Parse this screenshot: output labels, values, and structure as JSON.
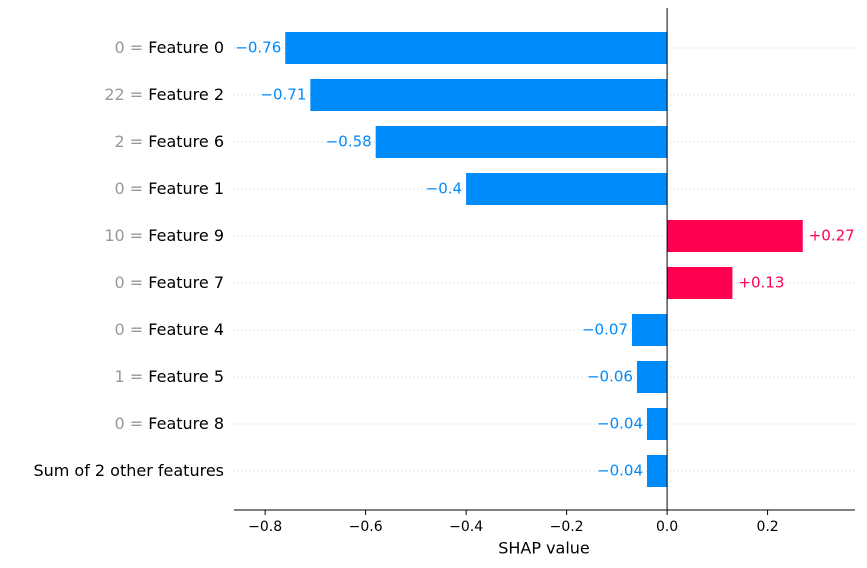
{
  "chart_data": {
    "type": "bar",
    "orientation": "horizontal",
    "feature_values": [
      "0 =",
      "22 =",
      "2 =",
      "0 =",
      "10 =",
      "0 =",
      "0 =",
      "1 =",
      "0 =",
      null
    ],
    "categories": [
      "Feature 0",
      "Feature 2",
      "Feature 6",
      "Feature 1",
      "Feature 9",
      "Feature 7",
      "Feature 4",
      "Feature 5",
      "Feature 8",
      "Sum of 2 other features"
    ],
    "values": [
      -0.76,
      -0.71,
      -0.58,
      -0.4,
      0.27,
      0.13,
      -0.07,
      -0.06,
      -0.04,
      -0.04
    ],
    "value_labels": [
      "−0.76",
      "−0.71",
      "−0.58",
      "−0.4",
      "+0.27",
      "+0.13",
      "−0.07",
      "−0.06",
      "−0.04",
      "−0.04"
    ],
    "negative_color": "#008bfb",
    "positive_color": "#ff0051",
    "xlim": [
      -0.862,
      0.374
    ],
    "xticks": [
      {
        "value": -0.8,
        "label": "−0.8"
      },
      {
        "value": -0.6,
        "label": "−0.6"
      },
      {
        "value": -0.4,
        "label": "−0.4"
      },
      {
        "value": -0.2,
        "label": "−0.2"
      },
      {
        "value": 0,
        "label": "0.0"
      },
      0.2
    ],
    "xlabel": "SHAP value"
  }
}
